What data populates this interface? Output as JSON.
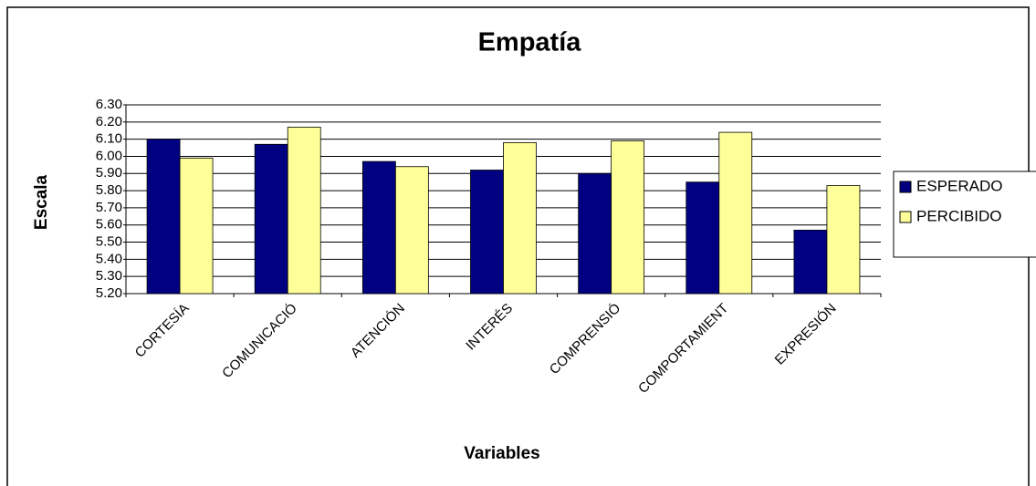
{
  "chart_data": {
    "type": "bar",
    "title": "Empatía",
    "x_label": "Variables",
    "y_label": "Escala",
    "categories": [
      "CORTESÍA",
      "COMUNICACIÓ",
      "ATENCIÓN",
      "INTERÉS",
      "COMPRENSIÓ",
      "COMPORTAMIENT",
      "EXPRESIÓN"
    ],
    "series": [
      {
        "name": "ESPERADO",
        "color": "#000080",
        "values": [
          6.1,
          6.07,
          5.97,
          5.92,
          5.9,
          5.85,
          5.57
        ]
      },
      {
        "name": "PERCIBIDO",
        "color": "#ffff99",
        "values": [
          5.99,
          6.17,
          5.94,
          6.08,
          6.09,
          6.14,
          5.83
        ]
      }
    ],
    "ylim": [
      5.2,
      6.3
    ],
    "yticks": [
      {
        "value": 5.2,
        "label": "5.20"
      },
      {
        "value": 5.3,
        "label": "5.30"
      },
      {
        "value": 5.4,
        "label": "5.40"
      },
      {
        "value": 5.5,
        "label": "5.50"
      },
      {
        "value": 5.6,
        "label": "5.60"
      },
      {
        "value": 5.7,
        "label": "5.70"
      },
      {
        "value": 5.8,
        "label": "5.80"
      },
      {
        "value": 5.9,
        "label": "5.90"
      },
      {
        "value": 6.0,
        "label": "6.00"
      },
      {
        "value": 6.1,
        "label": "6.10"
      },
      {
        "value": 6.2,
        "label": "6.20"
      },
      {
        "value": 6.3,
        "label": "6.30"
      }
    ],
    "grid": true,
    "legend": "right"
  }
}
